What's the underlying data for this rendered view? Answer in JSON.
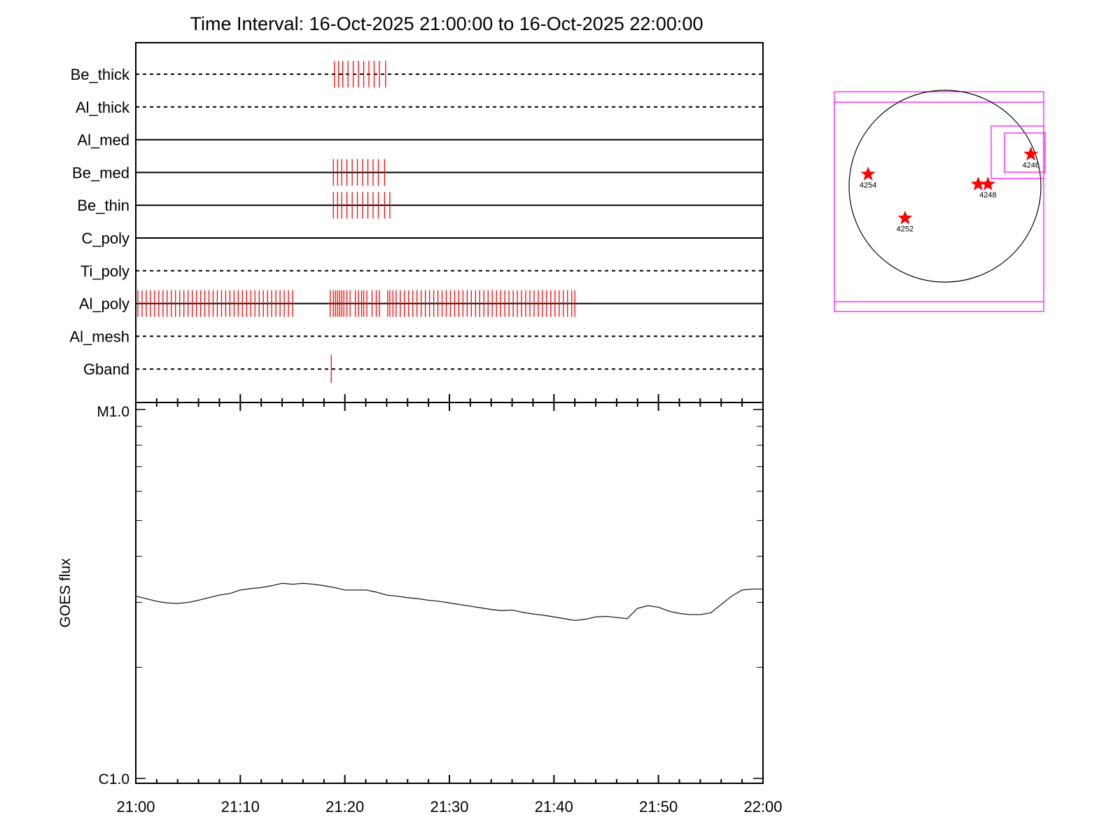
{
  "chart_data": {
    "title": "Time Interval: 16-Oct-2025 21:00:00 to 16-Oct-2025 22:00:00",
    "time_start": "21:00",
    "time_end": "22:00",
    "x_tick_labels": [
      "21:00",
      "21:10",
      "21:20",
      "21:30",
      "21:40",
      "21:50",
      "22:00"
    ],
    "filter_panel": {
      "type": "timeline",
      "rows": [
        {
          "name": "Be_thick",
          "line": "dashed",
          "events": [
            19.0,
            19.4,
            19.8,
            20.3,
            20.8,
            21.3,
            21.8,
            22.3,
            22.8,
            23.3,
            23.9
          ]
        },
        {
          "name": "Al_thick",
          "line": "dashed",
          "events": []
        },
        {
          "name": "Al_med",
          "line": "solid",
          "events": []
        },
        {
          "name": "Be_med",
          "line": "solid",
          "events": [
            18.9,
            19.3,
            19.7,
            20.2,
            20.7,
            21.2,
            21.7,
            22.2,
            22.7,
            23.2,
            23.8
          ]
        },
        {
          "name": "Be_thin",
          "line": "solid",
          "events": [
            18.9,
            19.3,
            19.7,
            20.2,
            20.7,
            21.2,
            21.7,
            22.2,
            22.7,
            23.2,
            23.8,
            24.3
          ]
        },
        {
          "name": "C_poly",
          "line": "solid",
          "events": []
        },
        {
          "name": "Ti_poly",
          "line": "dashed",
          "events": []
        },
        {
          "name": "Al_poly",
          "line": "solid",
          "events": [
            0.2,
            0.6,
            1.0,
            1.4,
            1.8,
            2.2,
            2.6,
            3.0,
            3.4,
            3.8,
            4.2,
            4.6,
            5.0,
            5.4,
            5.8,
            6.2,
            6.6,
            7.0,
            7.4,
            7.8,
            8.2,
            8.6,
            9.0,
            9.4,
            9.8,
            10.2,
            10.6,
            11.0,
            11.4,
            11.8,
            12.2,
            12.6,
            13.0,
            13.4,
            13.8,
            14.2,
            14.6,
            15.0,
            18.6,
            18.9,
            19.1,
            19.3,
            19.5,
            19.7,
            19.9,
            20.2,
            20.5,
            21.0,
            21.3,
            21.6,
            21.8,
            22.1,
            22.6,
            23.0,
            23.3,
            24.1,
            24.3,
            24.6,
            24.9,
            25.3,
            25.7,
            26.1,
            26.5,
            26.9,
            27.3,
            27.7,
            28.1,
            28.5,
            28.9,
            29.3,
            29.7,
            30.1,
            30.5,
            30.9,
            31.3,
            31.7,
            32.1,
            32.5,
            32.9,
            33.3,
            33.7,
            34.1,
            34.5,
            34.9,
            35.3,
            35.7,
            36.1,
            36.5,
            36.9,
            37.3,
            37.7,
            38.1,
            38.5,
            38.9,
            39.3,
            39.7,
            40.1,
            40.5,
            40.9,
            41.3,
            41.7,
            42.0
          ]
        },
        {
          "name": "Al_mesh",
          "line": "dashed",
          "events": []
        },
        {
          "name": "Gband",
          "line": "dashed",
          "events": [
            18.7
          ]
        }
      ]
    },
    "goes_panel": {
      "type": "line",
      "ylabel": "GOES flux",
      "y_scale": "log",
      "y_tick_labels": [
        "M1.0",
        "C1.0"
      ],
      "ylim": [
        1e-06,
        1e-05
      ],
      "series": [
        {
          "x": [
            0,
            1,
            2,
            3,
            4,
            5,
            6,
            7,
            8,
            9,
            10,
            11,
            12,
            13,
            14,
            15,
            16,
            17,
            18,
            19,
            20,
            21,
            22,
            23,
            24,
            25,
            26,
            27,
            28,
            29,
            30,
            31,
            32,
            33,
            34,
            35,
            36,
            37,
            38,
            39,
            40,
            41,
            42,
            43,
            44,
            45,
            46,
            47,
            48,
            49,
            50,
            51,
            52,
            53,
            54,
            55,
            56,
            57,
            58,
            59,
            60
          ],
          "y": [
            3.12e-06,
            3.07e-06,
            3.02e-06,
            2.99e-06,
            2.98e-06,
            3e-06,
            3.04e-06,
            3.09e-06,
            3.14e-06,
            3.17e-06,
            3.24e-06,
            3.27e-06,
            3.29e-06,
            3.33e-06,
            3.38e-06,
            3.36e-06,
            3.38e-06,
            3.36e-06,
            3.33e-06,
            3.29e-06,
            3.24e-06,
            3.24e-06,
            3.24e-06,
            3.2e-06,
            3.14e-06,
            3.12e-06,
            3.09e-06,
            3.07e-06,
            3.04e-06,
            3.02e-06,
            2.99e-06,
            2.96e-06,
            2.93e-06,
            2.9e-06,
            2.87e-06,
            2.85e-06,
            2.86e-06,
            2.82e-06,
            2.79e-06,
            2.77e-06,
            2.74e-06,
            2.71e-06,
            2.68e-06,
            2.7e-06,
            2.74e-06,
            2.75e-06,
            2.73e-06,
            2.71e-06,
            2.89e-06,
            2.94e-06,
            2.91e-06,
            2.84e-06,
            2.8e-06,
            2.78e-06,
            2.78e-06,
            2.81e-06,
            2.96e-06,
            3.12e-06,
            3.24e-06,
            3.26e-06,
            3.26e-06
          ]
        }
      ]
    },
    "sun_map": {
      "active_regions": [
        {
          "label": "4246",
          "x_arcsec": 860,
          "y_arcsec": 320
        },
        {
          "label": "4254",
          "x_arcsec": -770,
          "y_arcsec": 120
        },
        {
          "label": "4248",
          "x_arcsec": 430,
          "y_arcsec": 20
        },
        {
          "label": "4252",
          "x_arcsec": -400,
          "y_arcsec": -320
        }
      ],
      "marker_color": "#ff0000",
      "fov_color": "#ff00ff"
    }
  }
}
